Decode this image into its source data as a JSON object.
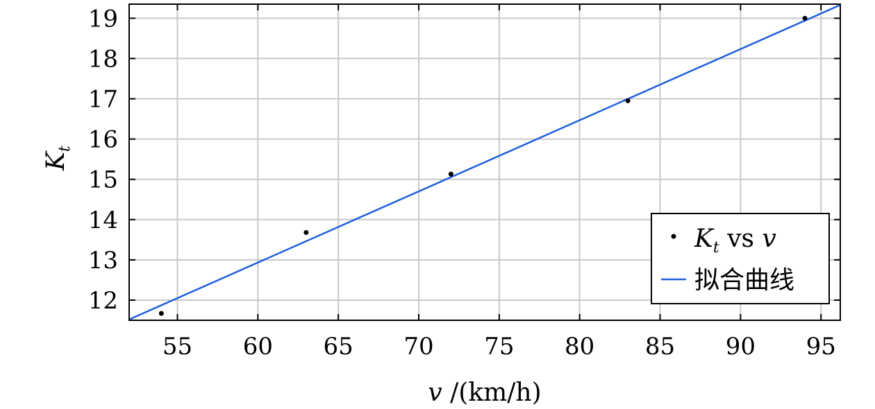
{
  "chart_data": {
    "type": "scatter",
    "xlabel_var": "v",
    "xlabel_unit": " /(km/h)",
    "ylabel_var": "K",
    "ylabel_sub": "t",
    "xlim": [
      52,
      96.2
    ],
    "ylim": [
      11.5,
      19.35
    ],
    "xticks": [
      55,
      60,
      65,
      70,
      75,
      80,
      85,
      90,
      95
    ],
    "yticks": [
      12,
      13,
      14,
      15,
      16,
      17,
      18,
      19
    ],
    "grid": true,
    "legend_position": "bottom-right",
    "series": [
      {
        "kind": "points",
        "legend_var": "K",
        "legend_sub": "t",
        "legend_rest": " vs ",
        "legend_var2": "v",
        "color": "#000000",
        "x": [
          54,
          63,
          72,
          83,
          94
        ],
        "y": [
          11.67,
          13.68,
          15.13,
          16.95,
          19.0
        ]
      },
      {
        "kind": "line",
        "name": "拟合曲线",
        "color": "#1f5fdc",
        "x": [
          52,
          96.2
        ],
        "y": [
          11.52,
          19.33
        ]
      }
    ]
  }
}
